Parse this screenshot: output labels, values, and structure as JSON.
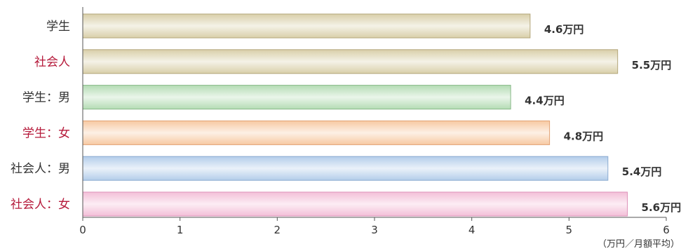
{
  "chart_data": {
    "type": "bar",
    "orientation": "horizontal",
    "categories": [
      "学生",
      "社会人",
      "学生：男",
      "学生：女",
      "社会人：男",
      "社会人：女"
    ],
    "values": [
      4.6,
      5.5,
      4.4,
      4.8,
      5.4,
      5.6
    ],
    "value_labels": [
      "4.6万円",
      "5.5万円",
      "4.4万円",
      "4.8万円",
      "5.4万円",
      "5.6万円"
    ],
    "xlim": [
      0,
      6
    ],
    "x_ticks": [
      "0",
      "1",
      "2",
      "3",
      "4",
      "5",
      "6"
    ],
    "unit_label": "（万円／月額平均）",
    "grid": false,
    "colors": {
      "category_highlight": "#b5193a",
      "category_normal": "#333333",
      "bars": [
        "#d9cfa9",
        "#d9cfa9",
        "#b4dcb4",
        "#f7c9a2",
        "#b3cdea",
        "#f3bfd8"
      ],
      "bar_borders": [
        "#b3a67a",
        "#b3a67a",
        "#87b987",
        "#e2a274",
        "#8aaad0",
        "#dd92b9"
      ]
    },
    "category_highlight": [
      false,
      true,
      false,
      true,
      false,
      true
    ]
  }
}
